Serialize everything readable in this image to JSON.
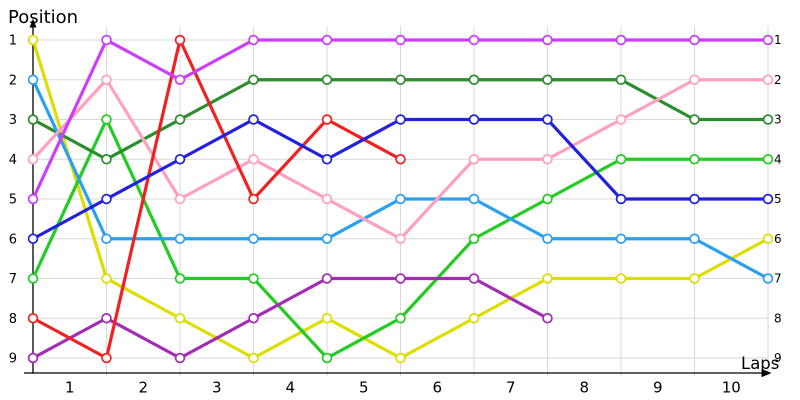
{
  "chart_data": {
    "type": "line",
    "title": "",
    "ylabel": "Position",
    "xlabel": "Laps",
    "x_tick_labels": [
      "1",
      "2",
      "3",
      "4",
      "5",
      "6",
      "7",
      "8",
      "9",
      "10"
    ],
    "y_tick_labels_left": [
      "1",
      "2",
      "3",
      "4",
      "5",
      "6",
      "7",
      "8",
      "9"
    ],
    "y_tick_labels_right": [
      "1",
      "2",
      "3",
      "4",
      "5",
      "6",
      "7",
      "8",
      "9"
    ],
    "x_points": [
      0.5,
      1.5,
      2.5,
      3.5,
      4.5,
      5.5,
      6.5,
      7.5,
      8.5,
      9.5,
      10.5
    ],
    "xlim": [
      0.5,
      10.5
    ],
    "ylim": [
      1,
      9
    ],
    "y_axis_inverted": true,
    "grid": true,
    "legend": "none",
    "axis_color": "#000000",
    "grid_color": "#d9d9d9",
    "marker_fill": "#ffffff",
    "series": [
      {
        "name": "yellow",
        "color": "#dddd00",
        "values": [
          1,
          7,
          8,
          9,
          8,
          9,
          8,
          7,
          7,
          7,
          6
        ]
      },
      {
        "name": "bright-green",
        "color": "#22cc22",
        "values": [
          7,
          3,
          7,
          7,
          9,
          8,
          6,
          5,
          4,
          4,
          4
        ]
      },
      {
        "name": "purple",
        "color": "#a32cb5",
        "values": [
          9,
          8,
          9,
          8,
          7,
          7,
          7,
          8,
          null,
          null,
          null
        ]
      },
      {
        "name": "dark-green",
        "color": "#2d8c2d",
        "values": [
          3,
          4,
          3,
          2,
          2,
          2,
          2,
          2,
          2,
          3,
          3
        ]
      },
      {
        "name": "light-blue",
        "color": "#2aa0f0",
        "values": [
          2,
          6,
          6,
          6,
          6,
          5,
          5,
          6,
          6,
          6,
          7
        ]
      },
      {
        "name": "pink",
        "color": "#ffa0c2",
        "values": [
          4,
          2,
          5,
          4,
          5,
          6,
          4,
          4,
          3,
          2,
          2
        ]
      },
      {
        "name": "red",
        "color": "#ee2222",
        "values": [
          8,
          9,
          1,
          5,
          3,
          4,
          null,
          null,
          null,
          null,
          null
        ]
      },
      {
        "name": "dark-blue",
        "color": "#2222dd",
        "values": [
          6,
          5,
          4,
          3,
          4,
          3,
          3,
          3,
          5,
          5,
          5
        ]
      },
      {
        "name": "magenta",
        "color": "#cc3dff",
        "values": [
          5,
          1,
          2,
          1,
          1,
          1,
          1,
          1,
          1,
          1,
          1
        ]
      }
    ]
  }
}
